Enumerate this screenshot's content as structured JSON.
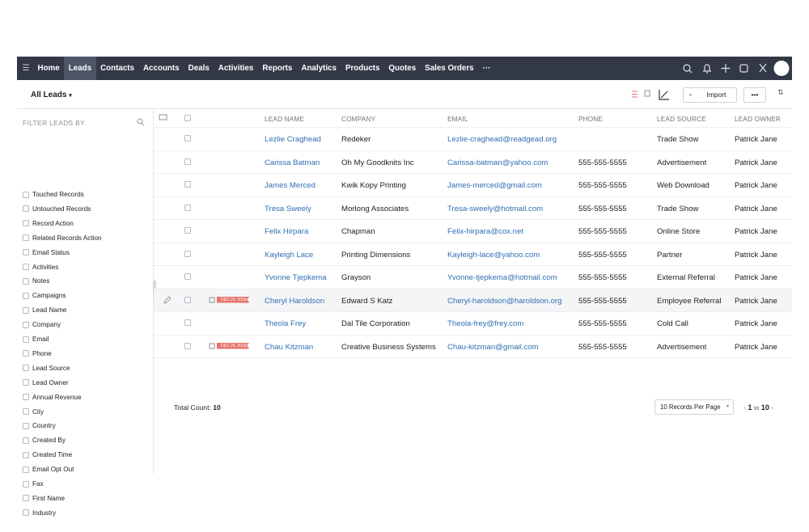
{
  "nav": {
    "items": [
      "Home",
      "Leads",
      "Contacts",
      "Accounts",
      "Deals",
      "Activities",
      "Reports",
      "Analytics",
      "Products",
      "Quotes",
      "Sales Orders",
      "···"
    ],
    "active": "Leads"
  },
  "toolbar": {
    "view": "All Leads",
    "import": "Import",
    "more": "•••"
  },
  "filter": {
    "title": "FILTER LEADS BY",
    "items": [
      "Touched Records",
      "Untouched Records",
      "Record Action",
      "Related Records Action",
      "Email Status",
      "Activities",
      "Notes",
      "Campaigns",
      "Lead Name",
      "Company",
      "Email",
      "Phone",
      "Lead Source",
      "Lead Owner",
      "Annual Revenue",
      "City",
      "Country",
      "Created By",
      "Created Time",
      "Email Opt Out",
      "Fax",
      "First Name",
      "Industry"
    ]
  },
  "table": {
    "headers": [
      "LEAD NAME",
      "COMPANY",
      "EMAIL",
      "PHONE",
      "LEAD SOURCE",
      "LEAD OWNER"
    ],
    "rows": [
      {
        "name": "Lezlie Craghead",
        "company": "Redeker",
        "email": "Lezlie-craghead@readgead.org",
        "source": "Trade Show",
        "owner": "Patrick Jane"
      },
      {
        "name": "Carissa Batman",
        "company": "Oh My Goodknits Inc",
        "email": "Carissa-batman@yahoo.com",
        "phone": "555-555-5555",
        "source": "Advertisement",
        "owner": "Patrick Jane"
      },
      {
        "name": "James Merced",
        "company": "Kwik Kopy Printing",
        "email": "James-merced@gmail.com",
        "phone": "555-555-5555",
        "source": "Web Download",
        "owner": "Patrick Jane"
      },
      {
        "name": "Tresa Sweely",
        "company": "Morlong Associates",
        "email": "Tresa-sweely@hotmail.com",
        "phone": "555-555-5555",
        "source": "Trade Show",
        "owner": "Patrick Jane"
      },
      {
        "name": "Felix Hirpara",
        "company": "Chapman",
        "email": "Felix-hirpara@cox.net",
        "phone": "555-555-5555",
        "source": "Online Store",
        "owner": "Patrick Jane"
      },
      {
        "name": "Kayleigh Lace",
        "company": "Printing Dimensions",
        "email": "Kayleigh-lace@yahoo.com",
        "phone": "555-555-5555",
        "source": "Partner",
        "owner": "Patrick Jane"
      },
      {
        "name": "Yvonne Tjepkema",
        "company": "Grayson",
        "email": "Yvonne-tjepkema@hotmail.com",
        "phone": "555-555-5555",
        "source": "External Referral",
        "owner": "Patrick Jane"
      },
      {
        "name": "Cheryl Haroldson",
        "company": "Edward S Katz",
        "email": "Cheryl-haroldson@haroldson.org",
        "phone": "555-555-5555",
        "source": "Employee Referral",
        "owner": "Patrick Jane",
        "tag": "DEC 29, 2018",
        "hover": true
      },
      {
        "name": "Theola Frey",
        "company": "Dal Tile Corporation",
        "email": "Theola-frey@frey.com",
        "phone": "555-555-5555",
        "source": "Cold Call",
        "owner": "Patrick Jane"
      },
      {
        "name": "Chau Kitzman",
        "company": "Creative Business Systems",
        "email": "Chau-kitzman@gmail.com",
        "phone": "555-555-5555",
        "source": "Advertisement",
        "owner": "Patrick Jane",
        "tag": "DEC 26, 2018"
      }
    ]
  },
  "footer": {
    "total_label": "Total Count:",
    "total": 10,
    "per_page": "10 Records Per Page",
    "page_from": 1,
    "page_word": "to",
    "page_to": 10
  }
}
